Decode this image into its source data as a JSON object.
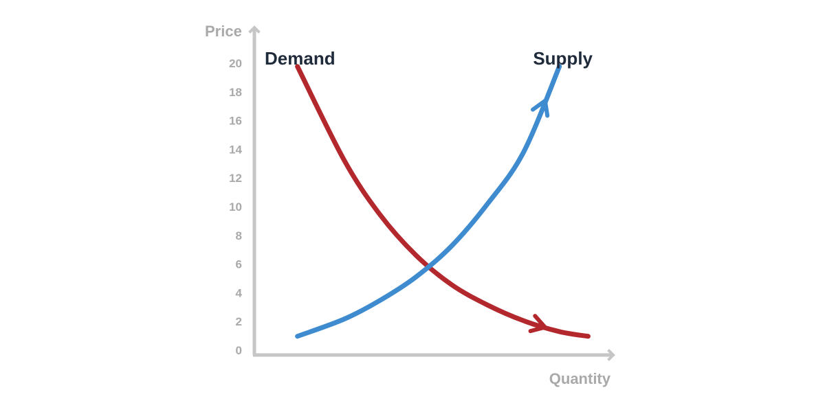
{
  "chart_data": {
    "type": "line",
    "title": "",
    "xlabel": "Quantity",
    "ylabel": "Price",
    "xlim": [
      0,
      10
    ],
    "ylim": [
      0,
      21
    ],
    "yticks": [
      "0",
      "2",
      "4",
      "6",
      "8",
      "10",
      "12",
      "14",
      "16",
      "18",
      "20"
    ],
    "grid": false,
    "series": [
      {
        "name": "Demand",
        "color": "#b3282d",
        "x": [
          1.2,
          2.5,
          3.5,
          4.5,
          5.5,
          6.5,
          7.5,
          8.5,
          9.3
        ],
        "y": [
          18.5,
          12.5,
          9.0,
          6.4,
          4.5,
          3.2,
          2.2,
          1.5,
          1.2
        ]
      },
      {
        "name": "Supply",
        "color": "#3e8bcf",
        "x": [
          1.2,
          2.5,
          3.5,
          4.5,
          5.5,
          6.5,
          7.5,
          8.5
        ],
        "y": [
          1.2,
          2.3,
          3.5,
          5.0,
          7.0,
          9.7,
          13.0,
          18.5
        ]
      }
    ]
  }
}
